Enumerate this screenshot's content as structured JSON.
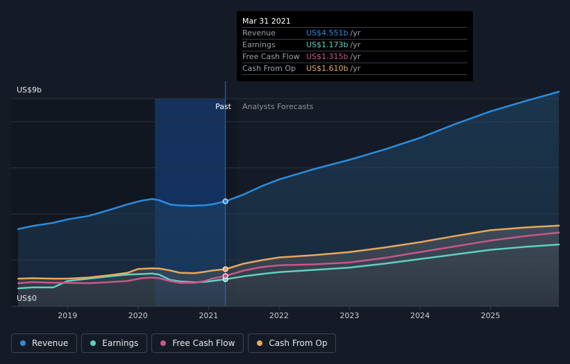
{
  "chart_data": {
    "type": "line",
    "y_unit_label_top": "US$9b",
    "y_unit_label_bottom": "US$0",
    "ylim": [
      0,
      9
    ],
    "xlim": [
      2018.2,
      2025.97
    ],
    "x_ticks": [
      "2019",
      "2020",
      "2021",
      "2022",
      "2023",
      "2024",
      "2025"
    ],
    "divider_label_past": "Past",
    "divider_label_forecast": "Analysts Forecasts",
    "past_end_x": 2021.24,
    "highlight_start_x": 2020.24,
    "series": [
      {
        "name": "Revenue",
        "color": "#2a8ee0",
        "x": [
          2018.3,
          2018.5,
          2018.8,
          2019.0,
          2019.3,
          2019.6,
          2019.85,
          2020.05,
          2020.2,
          2020.3,
          2020.45,
          2020.55,
          2020.75,
          2020.95,
          2021.05,
          2021.24,
          2021.5,
          2021.75,
          2022.0,
          2022.5,
          2023.0,
          2023.5,
          2024.0,
          2024.5,
          2025.0,
          2025.5,
          2025.97
        ],
        "values": [
          3.35,
          3.48,
          3.62,
          3.77,
          3.92,
          4.18,
          4.42,
          4.58,
          4.65,
          4.6,
          4.42,
          4.38,
          4.36,
          4.38,
          4.42,
          4.551,
          4.85,
          5.2,
          5.5,
          5.95,
          6.35,
          6.8,
          7.3,
          7.9,
          8.45,
          8.9,
          9.3
        ]
      },
      {
        "name": "Earnings",
        "color": "#5fd1c2",
        "x": [
          2018.3,
          2018.5,
          2018.8,
          2019.0,
          2019.3,
          2019.6,
          2019.85,
          2020.05,
          2020.2,
          2020.3,
          2020.45,
          2020.6,
          2020.8,
          2020.95,
          2021.05,
          2021.24,
          2021.5,
          2021.75,
          2022.0,
          2022.5,
          2023.0,
          2023.5,
          2024.0,
          2024.5,
          2025.0,
          2025.5,
          2025.97
        ],
        "values": [
          0.78,
          0.82,
          0.82,
          1.1,
          1.2,
          1.3,
          1.38,
          1.4,
          1.42,
          1.38,
          1.15,
          1.08,
          1.04,
          1.06,
          1.1,
          1.173,
          1.3,
          1.4,
          1.48,
          1.58,
          1.68,
          1.85,
          2.05,
          2.25,
          2.45,
          2.58,
          2.68
        ]
      },
      {
        "name": "Free Cash Flow",
        "color": "#c85889",
        "x": [
          2018.3,
          2018.5,
          2018.8,
          2019.0,
          2019.3,
          2019.6,
          2019.85,
          2020.05,
          2020.2,
          2020.3,
          2020.45,
          2020.6,
          2020.8,
          2020.95,
          2021.05,
          2021.24,
          2021.5,
          2021.75,
          2022.0,
          2022.5,
          2023.0,
          2023.5,
          2024.0,
          2024.5,
          2025.0,
          2025.5,
          2025.97
        ],
        "values": [
          1.0,
          1.05,
          1.02,
          1.02,
          1.0,
          1.05,
          1.1,
          1.22,
          1.25,
          1.22,
          1.1,
          1.02,
          1.02,
          1.1,
          1.2,
          1.315,
          1.55,
          1.7,
          1.78,
          1.82,
          1.9,
          2.1,
          2.35,
          2.6,
          2.85,
          3.05,
          3.2
        ]
      },
      {
        "name": "Cash From Op",
        "color": "#e9a85b",
        "x": [
          2018.3,
          2018.5,
          2018.8,
          2019.0,
          2019.3,
          2019.6,
          2019.85,
          2020.0,
          2020.2,
          2020.3,
          2020.45,
          2020.6,
          2020.8,
          2020.95,
          2021.05,
          2021.24,
          2021.5,
          2021.75,
          2022.0,
          2022.5,
          2023.0,
          2023.5,
          2024.0,
          2024.5,
          2025.0,
          2025.5,
          2025.97
        ],
        "values": [
          1.2,
          1.22,
          1.2,
          1.2,
          1.25,
          1.35,
          1.45,
          1.62,
          1.65,
          1.64,
          1.56,
          1.45,
          1.44,
          1.5,
          1.55,
          1.61,
          1.85,
          2.0,
          2.12,
          2.22,
          2.35,
          2.55,
          2.78,
          3.05,
          3.3,
          3.42,
          3.5
        ]
      }
    ]
  },
  "tooltip": {
    "date": "Mar 31 2021",
    "rows": [
      {
        "name": "Revenue",
        "value": "US$4.551b",
        "unit": "/yr",
        "color": "#2a8ee0"
      },
      {
        "name": "Earnings",
        "value": "US$1.173b",
        "unit": "/yr",
        "color": "#5fd1c2"
      },
      {
        "name": "Free Cash Flow",
        "value": "US$1.315b",
        "unit": "/yr",
        "color": "#c85889"
      },
      {
        "name": "Cash From Op",
        "value": "US$1.610b",
        "unit": "/yr",
        "color": "#e9a85b"
      }
    ]
  },
  "legend": [
    {
      "label": "Revenue",
      "color": "#2a8ee0"
    },
    {
      "label": "Earnings",
      "color": "#5fd1c2"
    },
    {
      "label": "Free Cash Flow",
      "color": "#c85889"
    },
    {
      "label": "Cash From Op",
      "color": "#e9a85b"
    }
  ]
}
